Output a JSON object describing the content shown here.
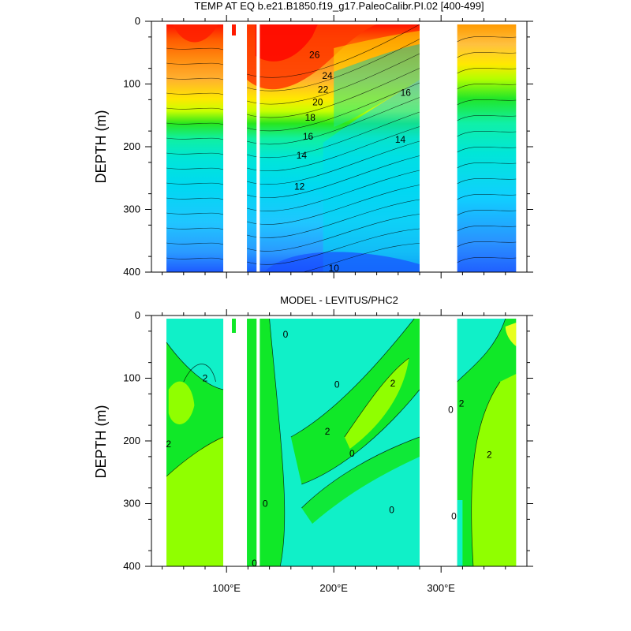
{
  "figure": {
    "type": "ncl-ocean-section-contour-plot"
  },
  "chart_data": [
    {
      "type": "heatmap",
      "title": "TEMP AT EQ b.e21.B1850.f19_g17.PaleoCalibr.PI.02 [400-499]",
      "xlabel": "",
      "ylabel": "DEPTH (m)",
      "xlim": [
        30,
        380
      ],
      "ylim": [
        400,
        0
      ],
      "y_inverted": true,
      "y_ticks": [
        "0",
        "100",
        "200",
        "300",
        "400"
      ],
      "x_ticks": [
        {
          "value": 100,
          "label": "100°E"
        },
        {
          "value": 200,
          "label": "200°E"
        },
        {
          "value": 300,
          "label": "300°E"
        }
      ],
      "grid": false,
      "land_gaps_lon": [
        [
          97,
          119
        ],
        [
          128,
          131
        ],
        [
          280,
          315
        ],
        [
          370,
          380
        ]
      ],
      "contour_interval": 1,
      "contour_labels": [
        {
          "text": "26",
          "lon": 182,
          "depth": 55
        },
        {
          "text": "24",
          "lon": 194,
          "depth": 88
        },
        {
          "text": "22",
          "lon": 190,
          "depth": 110
        },
        {
          "text": "20",
          "lon": 185,
          "depth": 130
        },
        {
          "text": "18",
          "lon": 178,
          "depth": 155
        },
        {
          "text": "16",
          "lon": 176,
          "depth": 185
        },
        {
          "text": "14",
          "lon": 170,
          "depth": 215
        },
        {
          "text": "12",
          "lon": 168,
          "depth": 265
        },
        {
          "text": "10",
          "lon": 200,
          "depth": 395
        },
        {
          "text": "16",
          "lon": 267,
          "depth": 115
        },
        {
          "text": "14",
          "lon": 262,
          "depth": 190
        }
      ],
      "approx_fields": {
        "surface_max": 29,
        "deep_min": 9,
        "thermocline_depth_west": 150,
        "thermocline_depth_east": 60
      }
    },
    {
      "type": "heatmap",
      "title": "MODEL - LEVITUS/PHC2",
      "xlabel": "",
      "ylabel": "DEPTH (m)",
      "xlim": [
        30,
        380
      ],
      "ylim": [
        400,
        0
      ],
      "y_inverted": true,
      "y_ticks": [
        "0",
        "100",
        "200",
        "300",
        "400"
      ],
      "x_ticks": [
        {
          "value": 100,
          "label": "100°E"
        },
        {
          "value": 200,
          "label": "200°E"
        },
        {
          "value": 300,
          "label": "300°E"
        }
      ],
      "grid": false,
      "land_gaps_lon": [
        [
          97,
          119
        ],
        [
          128,
          131
        ],
        [
          280,
          315
        ],
        [
          370,
          380
        ]
      ],
      "contour_labels": [
        {
          "text": "2",
          "lon": 80,
          "depth": 100
        },
        {
          "text": "2",
          "lon": 46,
          "depth": 205
        },
        {
          "text": "0",
          "lon": 155,
          "depth": 30
        },
        {
          "text": "0",
          "lon": 203,
          "depth": 110
        },
        {
          "text": "2",
          "lon": 255,
          "depth": 108
        },
        {
          "text": "2",
          "lon": 194,
          "depth": 185
        },
        {
          "text": "0",
          "lon": 217,
          "depth": 220
        },
        {
          "text": "0",
          "lon": 136,
          "depth": 300
        },
        {
          "text": "0",
          "lon": 254,
          "depth": 310
        },
        {
          "text": "0",
          "lon": 126,
          "depth": 395
        },
        {
          "text": "0",
          "lon": 309,
          "depth": 150
        },
        {
          "text": "2",
          "lon": 319,
          "depth": 140
        },
        {
          "text": "0",
          "lon": 312,
          "depth": 320
        },
        {
          "text": "2",
          "lon": 345,
          "depth": 222
        }
      ],
      "approx_fields": {
        "min_anomaly": -1,
        "max_anomaly": 3
      }
    }
  ]
}
